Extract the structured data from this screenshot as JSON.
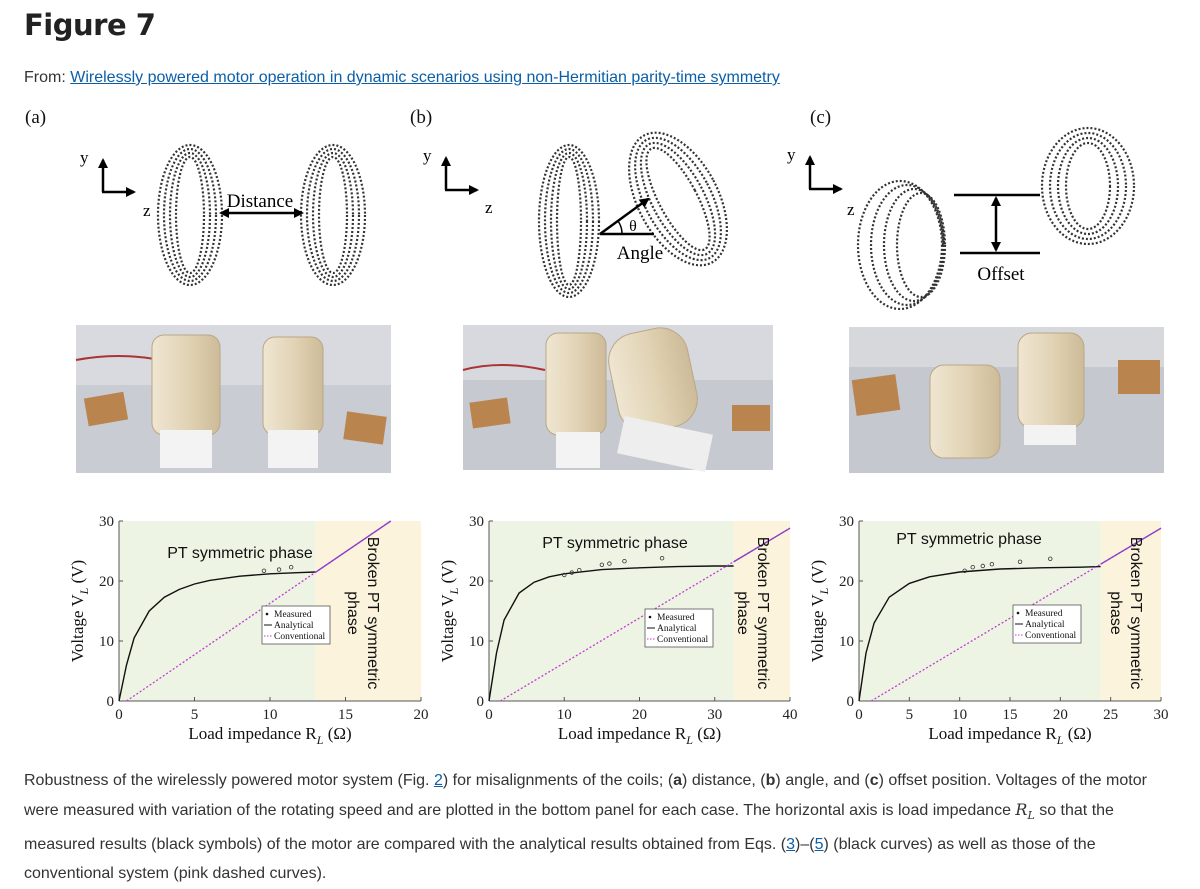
{
  "header": {
    "figure_title": "Figure 7",
    "from_label": "From:",
    "article_link": "Wirelessly powered motor operation in dynamic scenarios using non-Hermitian parity-time symmetry"
  },
  "panels": {
    "a": {
      "label": "(a)",
      "axis_y": "y",
      "axis_z": "z",
      "annotation": "Distance"
    },
    "b": {
      "label": "(b)",
      "axis_y": "y",
      "axis_z": "z",
      "annotation": "Angle",
      "theta": "θ"
    },
    "c": {
      "label": "(c)",
      "axis_y": "y",
      "axis_z": "z",
      "annotation": "Offset"
    }
  },
  "plot_text": {
    "ylabel": "Voltage V",
    "ylabel_sub": "L",
    "ylabel_unit": " (V)",
    "xlabel": "Load impedance R",
    "xlabel_sub": "L",
    "xlabel_unit": " (Ω)",
    "pt_phase": "PT symmetric phase",
    "broken_line1": "Broken PT symmetric",
    "broken_line2": "phase",
    "legend": [
      "Measured",
      "Analytical",
      "Conventional"
    ]
  },
  "chart_data": [
    {
      "type": "line",
      "panel": "a",
      "xlim": [
        0,
        20
      ],
      "ylim": [
        0,
        30
      ],
      "xticks": [
        "0",
        "5",
        "10",
        "15",
        "20"
      ],
      "yticks": [
        "0",
        "10",
        "20",
        "30"
      ],
      "pt_boundary_x": 13,
      "series": [
        {
          "name": "Analytical",
          "x": [
            0,
            0.5,
            1,
            2,
            3,
            4,
            5,
            6,
            8,
            10,
            12,
            13
          ],
          "y": [
            0,
            6,
            10.5,
            15,
            17.3,
            18.6,
            19.5,
            20.1,
            20.8,
            21.2,
            21.4,
            21.5
          ]
        },
        {
          "name": "Conventional",
          "x": [
            0.5,
            18
          ],
          "y": [
            0,
            30
          ]
        },
        {
          "name": "Measured",
          "x": [
            9.6,
            10.6,
            11.4
          ],
          "y": [
            21.7,
            21.9,
            22.3
          ]
        }
      ]
    },
    {
      "type": "line",
      "panel": "b",
      "xlim": [
        0,
        40
      ],
      "ylim": [
        0,
        30
      ],
      "xticks": [
        "0",
        "10",
        "20",
        "30",
        "40"
      ],
      "yticks": [
        "0",
        "10",
        "20",
        "30"
      ],
      "pt_boundary_x": 32.5,
      "series": [
        {
          "name": "Analytical",
          "x": [
            0,
            1,
            2,
            4,
            6,
            8,
            10,
            15,
            20,
            25,
            30,
            32.5
          ],
          "y": [
            0,
            8,
            13.5,
            18,
            19.8,
            20.7,
            21.2,
            21.9,
            22.2,
            22.4,
            22.5,
            22.5
          ]
        },
        {
          "name": "Conventional",
          "x": [
            1.5,
            40
          ],
          "y": [
            0,
            28.8
          ]
        },
        {
          "name": "Measured",
          "x": [
            10,
            11,
            12,
            15,
            16,
            18,
            23
          ],
          "y": [
            21,
            21.4,
            21.8,
            22.7,
            22.9,
            23.3,
            23.8
          ]
        }
      ]
    },
    {
      "type": "line",
      "panel": "c",
      "xlim": [
        0,
        30
      ],
      "ylim": [
        0,
        30
      ],
      "xticks": [
        "0",
        "5",
        "10",
        "15",
        "20",
        "25",
        "30"
      ],
      "yticks": [
        "0",
        "10",
        "20",
        "30"
      ],
      "pt_boundary_x": 24,
      "series": [
        {
          "name": "Analytical",
          "x": [
            0,
            0.7,
            1.5,
            3,
            5,
            7,
            10,
            14,
            18,
            22,
            24
          ],
          "y": [
            0,
            8,
            13,
            17.3,
            19.6,
            20.7,
            21.5,
            22,
            22.2,
            22.3,
            22.4
          ]
        },
        {
          "name": "Conventional",
          "x": [
            1.2,
            30
          ],
          "y": [
            0,
            28.8
          ]
        },
        {
          "name": "Measured",
          "x": [
            10.5,
            11.3,
            12.3,
            13.2,
            16,
            19
          ],
          "y": [
            21.7,
            22.3,
            22.5,
            22.8,
            23.2,
            23.7
          ]
        }
      ]
    }
  ],
  "caption": {
    "p1": "Robustness of the wirelessly powered motor system (Fig. ",
    "ref_fig": "2",
    "p2": ") for misalignments of the coils; (",
    "a": "a",
    "p3": ") distance, (",
    "b": "b",
    "p4": ") angle, and (",
    "c": "c",
    "p5": ") offset position. Voltages of the motor were measured with variation of the rotating speed and are plotted in the bottom panel for each case. The horizontal axis is load impedance ",
    "rl_main": "R",
    "rl_sub": "L",
    "p6": " so that the measured results (black symbols) of the motor are compared with the analytical results obtained from Eqs. (",
    "eq3": "3",
    "dash": ")–(",
    "eq5": "5",
    "p7": ") (black curves) as well as those of the conventional system (pink dashed curves)."
  },
  "colors": {
    "link": "#0b5ea8",
    "pt_region": "#eef4e4",
    "broken_region": "#fbf3dc",
    "conventional": "#c23bd4",
    "analytical": "#111111"
  }
}
